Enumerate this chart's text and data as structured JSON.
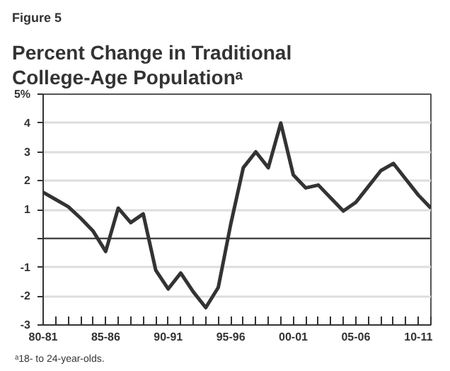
{
  "chart_data": {
    "type": "line",
    "subtitle": "Figure 5",
    "title": "Percent Change in Traditional College-Age Populationᵃ",
    "categories": [
      "80-81",
      null,
      null,
      null,
      null,
      "85-86",
      null,
      null,
      null,
      null,
      "90-91",
      null,
      null,
      null,
      null,
      "95-96",
      null,
      null,
      null,
      null,
      "00-01",
      null,
      null,
      null,
      null,
      "05-06",
      null,
      null,
      null,
      null,
      "10-11",
      null
    ],
    "series": [
      {
        "color": "#333333",
        "values": [
          1.6,
          1.35,
          1.1,
          0.7,
          0.25,
          -0.45,
          1.05,
          0.55,
          0.85,
          -1.1,
          -1.75,
          -1.2,
          -1.85,
          -2.4,
          -1.7,
          0.5,
          2.45,
          3.0,
          2.45,
          4.0,
          2.2,
          1.75,
          1.85,
          1.4,
          0.95,
          1.25,
          1.8,
          2.35,
          2.6,
          2.05,
          1.5,
          1.05
        ]
      }
    ],
    "ylim": [
      -3,
      5
    ],
    "yticks": [
      {
        "value": 5,
        "label": "5%"
      },
      4,
      3,
      2,
      1,
      {
        "value": 0,
        "label": null
      },
      -1,
      -2,
      -3
    ],
    "grid": "y",
    "marker": "none",
    "line_style": "solid",
    "ref_lines": [
      {
        "axis": "y",
        "value": 0,
        "color": "#333333"
      }
    ],
    "annotations": [
      "ᵃ18- to 24-year-olds."
    ]
  }
}
